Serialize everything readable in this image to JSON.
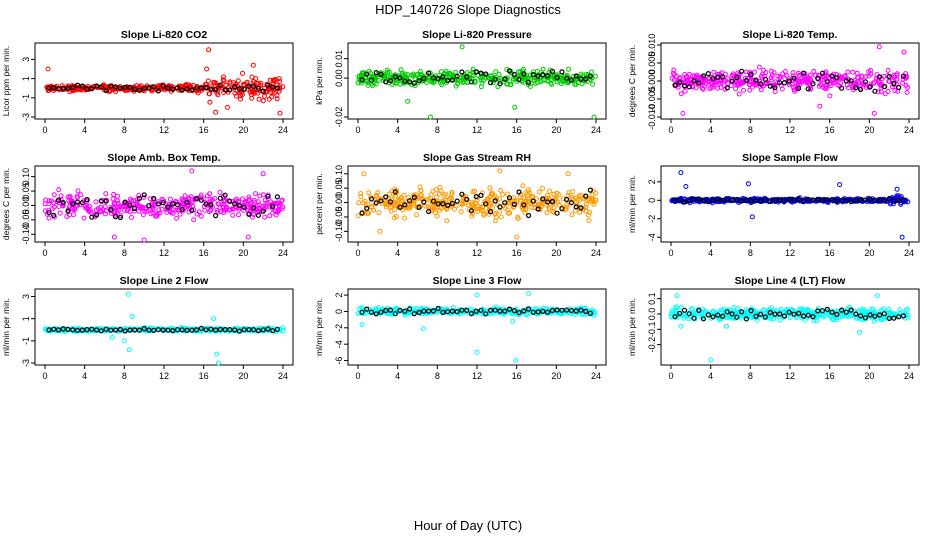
{
  "figure": {
    "title": "HDP_140726  Slope Diagnostics",
    "xlabel": "Hour of Day (UTC)"
  },
  "chart_data": [
    {
      "type": "scatter",
      "title": "Slope Li-820 CO2",
      "ylabel": "Licor ppm per min.",
      "color": "#ff0000",
      "xlim": [
        0,
        24
      ],
      "ylim": [
        -3,
        4.5
      ],
      "yticks": [
        "-3",
        "-1",
        "1",
        "3"
      ],
      "ytick_values": [
        -3,
        -1,
        1,
        3
      ],
      "xticks": [
        "0",
        "4",
        "8",
        "12",
        "16",
        "20",
        "24"
      ],
      "xtick_values": [
        0,
        4,
        8,
        12,
        16,
        20,
        24
      ],
      "spread": 0.35,
      "late_spread": 1.2,
      "late_from": 16,
      "outliers": [
        [
          16.5,
          4.0
        ],
        [
          16.3,
          2.0
        ],
        [
          17.2,
          -2.5
        ],
        [
          23.7,
          -2.6
        ],
        [
          0.3,
          2.0
        ],
        [
          18.4,
          -2.0
        ],
        [
          21.0,
          2.4
        ]
      ],
      "series": [
        {
          "name": "",
          "points": "colored"
        },
        {
          "name": "",
          "points": "black"
        }
      ]
    },
    {
      "type": "scatter",
      "title": "Slope Li-820 Pressure",
      "ylabel": "kPa per min.",
      "color": "#00cc00",
      "xlim": [
        0,
        24
      ],
      "ylim": [
        -0.02,
        0.017
      ],
      "yticks": [
        "-0.02",
        "0.00",
        "0.01"
      ],
      "ytick_values": [
        -0.02,
        0,
        0.01
      ],
      "xticks": [
        "0",
        "4",
        "8",
        "12",
        "16",
        "20",
        "24"
      ],
      "xtick_values": [
        0,
        4,
        8,
        12,
        16,
        20,
        24
      ],
      "spread": 0.004,
      "late_spread": 0.004,
      "late_from": 24,
      "outliers": [
        [
          10.5,
          0.016
        ],
        [
          7.3,
          -0.02
        ],
        [
          15.8,
          -0.015
        ],
        [
          23.8,
          -0.02
        ],
        [
          5.0,
          -0.012
        ]
      ],
      "series": [
        {
          "name": "",
          "points": "colored"
        },
        {
          "name": "",
          "points": "black"
        }
      ]
    },
    {
      "type": "scatter",
      "title": "Slope Li-820 Temp.",
      "ylabel": "degrees C per min.",
      "color": "#ff00ff",
      "xlim": [
        0,
        24
      ],
      "ylim": [
        -0.01,
        0.01
      ],
      "yticks": [
        "-0.010",
        "-0.005",
        "0.000",
        "0.005",
        "0.010"
      ],
      "ytick_values": [
        -0.01,
        -0.005,
        0,
        0.005,
        0.01
      ],
      "xticks": [
        "0",
        "4",
        "8",
        "12",
        "16",
        "20",
        "24"
      ],
      "xtick_values": [
        0,
        4,
        8,
        12,
        16,
        20,
        24
      ],
      "spread": 0.003,
      "late_spread": 0.004,
      "late_from": 20,
      "outliers": [
        [
          21.0,
          0.0095
        ],
        [
          23.5,
          0.008
        ],
        [
          20.5,
          -0.009
        ],
        [
          1.2,
          -0.009
        ],
        [
          15.0,
          -0.007
        ]
      ],
      "series": [
        {
          "name": "",
          "points": "colored"
        },
        {
          "name": "",
          "points": "black"
        }
      ]
    },
    {
      "type": "scatter",
      "title": "Slope Amb. Box Temp.",
      "ylabel": "degrees C per min.",
      "color": "#ff00ff",
      "xlim": [
        0,
        24
      ],
      "ylim": [
        -0.12,
        0.13
      ],
      "yticks": [
        "-0.10",
        "-0.05",
        "0.00",
        "0.05",
        "0.10"
      ],
      "ytick_values": [
        -0.1,
        -0.05,
        0,
        0.05,
        0.1
      ],
      "xticks": [
        "0",
        "4",
        "8",
        "12",
        "16",
        "20",
        "24"
      ],
      "xtick_values": [
        0,
        4,
        8,
        12,
        16,
        20,
        24
      ],
      "spread": 0.045,
      "late_spread": 0.045,
      "late_from": 24,
      "outliers": [
        [
          10.0,
          -0.12
        ],
        [
          14.8,
          0.12
        ],
        [
          7.0,
          -0.11
        ],
        [
          20.5,
          -0.11
        ],
        [
          22.0,
          0.11
        ]
      ],
      "series": [
        {
          "name": "",
          "points": "colored"
        },
        {
          "name": "",
          "points": "black"
        }
      ]
    },
    {
      "type": "scatter",
      "title": "Slope Gas Stream RH",
      "ylabel": "percent per min.",
      "color": "#ff9900",
      "xlim": [
        0,
        24
      ],
      "ylim": [
        -0.13,
        0.12
      ],
      "yticks": [
        "-0.10",
        "-0.05",
        "0.00",
        "0.05",
        "0.10"
      ],
      "ytick_values": [
        -0.1,
        -0.05,
        0,
        0.05,
        0.1
      ],
      "xticks": [
        "0",
        "4",
        "8",
        "12",
        "16",
        "20",
        "24"
      ],
      "xtick_values": [
        0,
        4,
        8,
        12,
        16,
        20,
        24
      ],
      "spread": 0.05,
      "late_spread": 0.05,
      "late_from": 24,
      "outliers": [
        [
          14.3,
          0.11
        ],
        [
          16.0,
          -0.12
        ],
        [
          2.2,
          -0.1
        ],
        [
          21.2,
          0.1
        ],
        [
          0.6,
          0.1
        ]
      ],
      "series": [
        {
          "name": "",
          "points": "colored"
        },
        {
          "name": "",
          "points": "black"
        }
      ]
    },
    {
      "type": "scatter",
      "title": "Slope Sample Flow",
      "ylabel": "ml/min per min.",
      "color": "#0000ff",
      "xlim": [
        0,
        24
      ],
      "ylim": [
        -4.3,
        3.5
      ],
      "yticks": [
        "-4",
        "-2",
        "0",
        "2"
      ],
      "ytick_values": [
        -4,
        -2,
        0,
        2
      ],
      "xticks": [
        "0",
        "4",
        "8",
        "12",
        "16",
        "20",
        "24"
      ],
      "xtick_values": [
        0,
        4,
        8,
        12,
        16,
        20,
        24
      ],
      "spread": 0.2,
      "late_spread": 0.5,
      "late_from": 22,
      "outliers": [
        [
          1.0,
          3.0
        ],
        [
          23.3,
          -4.0
        ],
        [
          7.8,
          1.8
        ],
        [
          8.2,
          -1.8
        ],
        [
          17.0,
          1.7
        ],
        [
          1.5,
          1.5
        ],
        [
          22.8,
          1.2
        ]
      ],
      "series": [
        {
          "name": "",
          "points": "colored"
        },
        {
          "name": "",
          "points": "black"
        }
      ]
    },
    {
      "type": "scatter",
      "title": "Slope Line 2 Flow",
      "ylabel": "ml/min per min.",
      "color": "#00ffff",
      "xlim": [
        0,
        24
      ],
      "ylim": [
        -3,
        3.5
      ],
      "yticks": [
        "-3",
        "-1",
        "1",
        "3"
      ],
      "ytick_values": [
        -3,
        -1,
        1,
        3
      ],
      "xticks": [
        "0",
        "4",
        "8",
        "12",
        "16",
        "20",
        "24"
      ],
      "xtick_values": [
        0,
        4,
        8,
        12,
        16,
        20,
        24
      ],
      "spread": 0.15,
      "late_spread": 0.15,
      "late_from": 24,
      "outliers": [
        [
          8.4,
          3.2
        ],
        [
          8.5,
          -1.8
        ],
        [
          8.8,
          1.2
        ],
        [
          17.3,
          -2.2
        ],
        [
          17.0,
          1.0
        ],
        [
          17.5,
          -3.0
        ],
        [
          6.8,
          -0.7
        ],
        [
          8.0,
          -1.0
        ]
      ],
      "series": [
        {
          "name": "",
          "points": "colored"
        },
        {
          "name": "",
          "points": "black"
        }
      ]
    },
    {
      "type": "scatter",
      "title": "Slope Line 3 Flow",
      "ylabel": "ml/min per min.",
      "color": "#00ffff",
      "xlim": [
        0,
        24
      ],
      "ylim": [
        -6.3,
        2.5
      ],
      "yticks": [
        "-6",
        "-4",
        "-2",
        "0",
        "2"
      ],
      "ytick_values": [
        -6,
        -4,
        -2,
        0,
        2
      ],
      "xticks": [
        "0",
        "4",
        "8",
        "12",
        "16",
        "20",
        "24"
      ],
      "xtick_values": [
        0,
        4,
        8,
        12,
        16,
        20,
        24
      ],
      "spread": 0.4,
      "late_spread": 0.4,
      "late_from": 24,
      "outliers": [
        [
          12.0,
          -5.0
        ],
        [
          15.9,
          -6.0
        ],
        [
          12.0,
          2.0
        ],
        [
          17.2,
          2.2
        ],
        [
          6.6,
          -2.1
        ],
        [
          0.4,
          -1.6
        ],
        [
          15.6,
          -1.2
        ]
      ],
      "series": [
        {
          "name": "",
          "points": "colored"
        },
        {
          "name": "",
          "points": "black"
        }
      ]
    },
    {
      "type": "scatter",
      "title": "Slope Line 4 (LT) Flow",
      "ylabel": "ml/min per min.",
      "color": "#00ffff",
      "xlim": [
        0,
        24
      ],
      "ylim": [
        -0.32,
        0.15
      ],
      "yticks": [
        "-0.2",
        "-0.1",
        "0.0",
        "0.1"
      ],
      "ytick_values": [
        -0.2,
        -0.1,
        0,
        0.1
      ],
      "xticks": [
        "0",
        "4",
        "8",
        "12",
        "16",
        "20",
        "24"
      ],
      "xtick_values": [
        0,
        4,
        8,
        12,
        16,
        20,
        24
      ],
      "spread": 0.04,
      "late_spread": 0.04,
      "late_from": 24,
      "outliers": [
        [
          4.0,
          -0.3
        ],
        [
          0.6,
          0.12
        ],
        [
          20.8,
          0.12
        ],
        [
          5.6,
          -0.08
        ],
        [
          19.0,
          -0.12
        ],
        [
          1.0,
          -0.08
        ]
      ],
      "series": [
        {
          "name": "",
          "points": "colored"
        },
        {
          "name": "",
          "points": "black"
        }
      ]
    }
  ]
}
